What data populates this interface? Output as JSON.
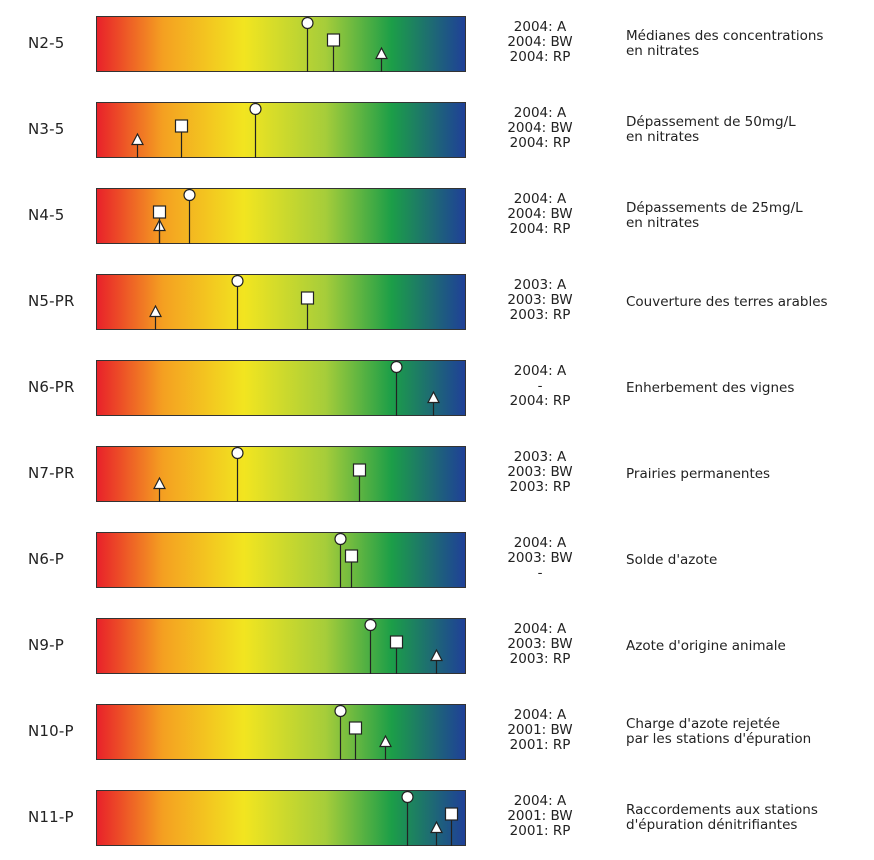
{
  "gradient_colors": [
    "#e8202a",
    "#f4a021",
    "#f2e520",
    "#a6cd3a",
    "#1c9e48",
    "#1f3f98"
  ],
  "marker_legend": {
    "circle": "A",
    "square": "BW",
    "triangle": "RP"
  },
  "indicators": [
    {
      "code": "N2-5",
      "years": [
        "2004: A",
        "2004: BW",
        "2004: RP"
      ],
      "description": [
        "Médianes des concentrations",
        "en nitrates"
      ],
      "markers": {
        "A": 0.57,
        "BW": 0.64,
        "RP": 0.77
      }
    },
    {
      "code": "N3-5",
      "years": [
        "2004: A",
        "2004: BW",
        "2004: RP"
      ],
      "description": [
        "Dépassement de 50mg/L",
        "en nitrates"
      ],
      "markers": {
        "A": 0.43,
        "BW": 0.23,
        "RP": 0.11
      }
    },
    {
      "code": "N4-5",
      "years": [
        "2004: A",
        "2004: BW",
        "2004: RP"
      ],
      "description": [
        "Dépassements de 25mg/L",
        "en nitrates"
      ],
      "markers": {
        "A": 0.25,
        "BW": 0.17,
        "RP": 0.17
      }
    },
    {
      "code": "N5-PR",
      "years": [
        "2003: A",
        "2003: BW",
        "2003: RP"
      ],
      "description": [
        "Couverture des terres arables"
      ],
      "markers": {
        "A": 0.38,
        "BW": 0.57,
        "RP": 0.16
      }
    },
    {
      "code": "N6-PR",
      "years": [
        "2004: A",
        "-",
        "2004: RP"
      ],
      "description": [
        "Enherbement des vignes"
      ],
      "markers": {
        "A": 0.81,
        "RP": 0.91
      }
    },
    {
      "code": "N7-PR",
      "years": [
        "2003: A",
        "2003: BW",
        "2003: RP"
      ],
      "description": [
        "Prairies permanentes"
      ],
      "markers": {
        "A": 0.38,
        "BW": 0.71,
        "RP": 0.17
      }
    },
    {
      "code": "N6-P",
      "years": [
        "2004: A",
        "2003: BW",
        "-"
      ],
      "description": [
        "Solde d'azote"
      ],
      "markers": {
        "A": 0.66,
        "BW": 0.69
      }
    },
    {
      "code": "N9-P",
      "years": [
        "2004: A",
        "2003: BW",
        "2003: RP"
      ],
      "description": [
        "Azote d'origine animale"
      ],
      "markers": {
        "A": 0.74,
        "BW": 0.81,
        "RP": 0.92
      }
    },
    {
      "code": "N10-P",
      "years": [
        "2004: A",
        "2001: BW",
        "2001: RP"
      ],
      "description": [
        "Charge d'azote rejetée",
        "par les stations d'épuration"
      ],
      "markers": {
        "A": 0.66,
        "BW": 0.7,
        "RP": 0.78
      }
    },
    {
      "code": "N11-P",
      "years": [
        "2004: A",
        "2001: BW",
        "2001: RP"
      ],
      "description": [
        "Raccordements aux stations",
        "d'épuration dénitrifiantes"
      ],
      "markers": {
        "A": 0.84,
        "BW": 0.96,
        "RP": 0.92
      }
    }
  ]
}
